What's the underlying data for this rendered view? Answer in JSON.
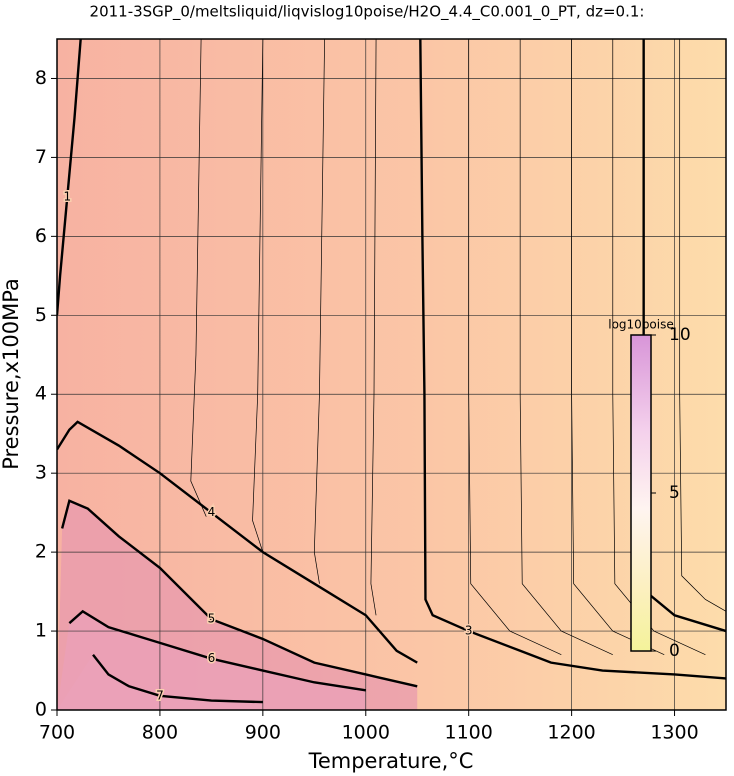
{
  "chart_data": {
    "type": "contour",
    "title": "2011-3SGP_0/meltsliquid/liqvislog10poise/H2O_4.4_C0.001_0_PT, dz=0.1:",
    "xlabel": "Temperature,°C",
    "ylabel": "Pressure,x100MPa",
    "xlim": [
      700,
      1350
    ],
    "ylim": [
      0,
      8.5
    ],
    "xticks": [
      700,
      800,
      900,
      1000,
      1100,
      1200,
      1300
    ],
    "yticks": [
      0,
      1,
      2,
      3,
      4,
      5,
      6,
      7,
      8
    ],
    "grid": true,
    "colorbar": {
      "label": "log10poise",
      "lim": [
        0,
        10
      ],
      "ticks": [
        0,
        5,
        10
      ]
    },
    "contours": [
      {
        "level": 3,
        "labeled": true,
        "T": [
          1053,
          1055,
          1057,
          1058,
          1065,
          1100,
          1150,
          1180,
          1230,
          1300,
          1350
        ],
        "P": [
          8.5,
          6,
          4,
          1.4,
          1.2,
          1.0,
          0.75,
          0.6,
          0.5,
          0.45,
          0.4
        ]
      },
      {
        "level": 2,
        "labeled": true,
        "T": [
          1270,
          1270,
          1270,
          1272,
          1300,
          1350
        ],
        "P": [
          8.5,
          5.8,
          3,
          1.5,
          1.2,
          1.0
        ]
      },
      {
        "level": 4,
        "labeled": true,
        "T": [
          700,
          712,
          720,
          760,
          800,
          850,
          900,
          950,
          1000,
          1030,
          1050
        ],
        "P": [
          3.3,
          3.55,
          3.65,
          3.35,
          3.0,
          2.5,
          2.0,
          1.6,
          1.2,
          0.75,
          0.6
        ]
      },
      {
        "level": 5,
        "labeled": true,
        "T": [
          705,
          712,
          730,
          760,
          800,
          850,
          900,
          950,
          1000,
          1050
        ],
        "P": [
          2.3,
          2.65,
          2.55,
          2.2,
          1.8,
          1.15,
          0.9,
          0.6,
          0.45,
          0.3
        ]
      },
      {
        "level": 6,
        "labeled": true,
        "T": [
          712,
          725,
          750,
          800,
          850,
          900,
          950,
          1000
        ],
        "P": [
          1.1,
          1.25,
          1.05,
          0.85,
          0.65,
          0.5,
          0.35,
          0.25
        ]
      },
      {
        "level": 7,
        "labeled": true,
        "T": [
          735,
          750,
          770,
          800,
          850,
          900
        ],
        "P": [
          0.7,
          0.45,
          0.3,
          0.18,
          0.12,
          0.1
        ]
      },
      {
        "level": 1,
        "labeled": true,
        "T": [
          723,
          717,
          710,
          703,
          700
        ],
        "P": [
          8.5,
          7.5,
          6.5,
          5.5,
          5.0
        ]
      },
      {
        "level": 2.8,
        "labeled": false,
        "T": [
          1100,
          1100,
          1102,
          1140,
          1190
        ],
        "P": [
          8.5,
          4,
          1.6,
          1.0,
          0.7
        ]
      },
      {
        "level": 2.6,
        "labeled": false,
        "T": [
          1150,
          1150,
          1152,
          1190,
          1240
        ],
        "P": [
          8.5,
          4,
          1.6,
          1.0,
          0.7
        ]
      },
      {
        "level": 2.4,
        "labeled": false,
        "T": [
          1200,
          1200,
          1202,
          1240,
          1290
        ],
        "P": [
          8.5,
          4,
          1.6,
          1.0,
          0.7
        ]
      },
      {
        "level": 2.2,
        "labeled": false,
        "T": [
          1240,
          1240,
          1242,
          1280,
          1330
        ],
        "P": [
          8.5,
          4,
          1.6,
          1.0,
          0.7
        ]
      },
      {
        "level": 1.8,
        "labeled": false,
        "T": [
          1305,
          1305,
          1307,
          1330,
          1350
        ],
        "P": [
          8.5,
          4,
          1.7,
          1.4,
          1.25
        ]
      },
      {
        "level": 3.2,
        "labeled": false,
        "T": [
          1010,
          1008,
          1005,
          1010
        ],
        "P": [
          8.5,
          4,
          1.6,
          1.2
        ]
      },
      {
        "level": 3.4,
        "labeled": false,
        "T": [
          960,
          955,
          950,
          955
        ],
        "P": [
          8.5,
          4,
          2.0,
          1.6
        ]
      },
      {
        "level": 3.6,
        "labeled": false,
        "T": [
          900,
          895,
          890,
          900
        ],
        "P": [
          8.5,
          4,
          2.4,
          2.0
        ]
      },
      {
        "level": 3.8,
        "labeled": false,
        "T": [
          840,
          835,
          830,
          845
        ],
        "P": [
          8.5,
          4.5,
          2.9,
          2.45
        ]
      }
    ]
  }
}
